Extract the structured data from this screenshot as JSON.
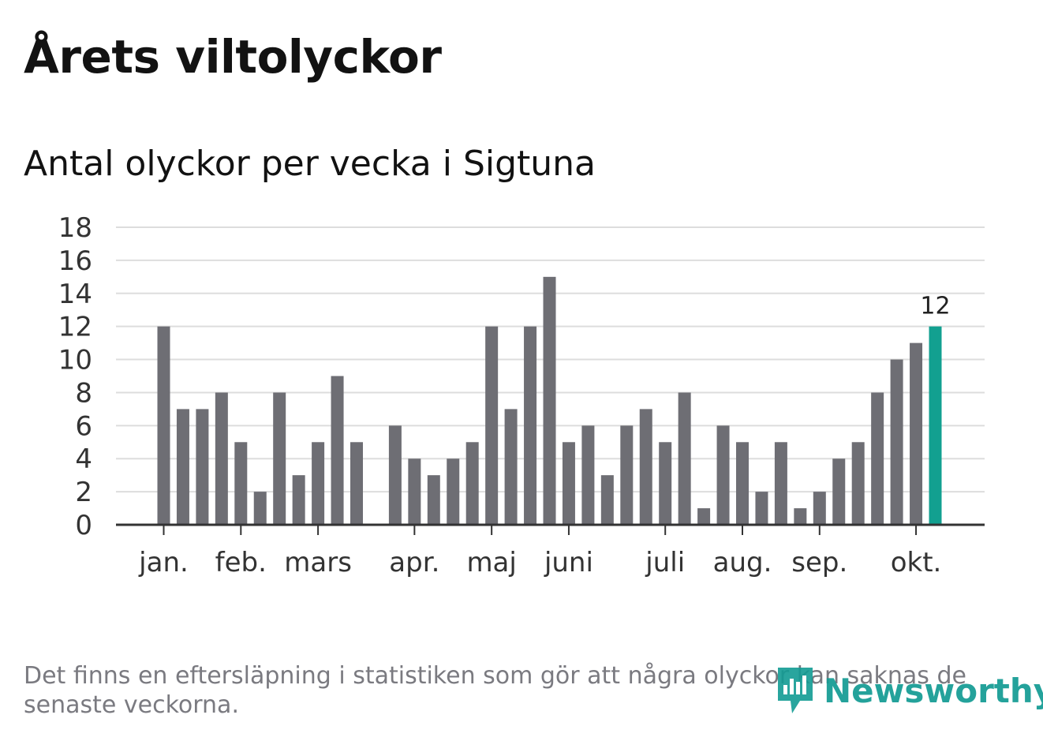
{
  "title": "Årets viltolyckor",
  "subtitle": "Antal olyckor per vecka i Sigtuna",
  "footnote": "Det finns en eftersläpning i statistiken som gör att några olyckor kan saknas de senaste veckorna.",
  "logo": {
    "text": "Newsworthy"
  },
  "colors": {
    "bar": "#6e6e74",
    "highlight": "#12a090",
    "grid": "#dddddd",
    "axis": "#333333",
    "logo": "#129b93"
  },
  "chart_data": {
    "type": "bar",
    "title": "Antal olyckor per vecka i Sigtuna",
    "xlabel": "",
    "ylabel": "",
    "ylim": [
      0,
      18
    ],
    "yticks": [
      "0",
      "2",
      "4",
      "6",
      "8",
      "10",
      "12",
      "14",
      "16",
      "18"
    ],
    "grid": true,
    "weeks": [
      1,
      2,
      3,
      4,
      5,
      6,
      7,
      8,
      9,
      10,
      11,
      12,
      13,
      14,
      15,
      16,
      17,
      18,
      19,
      20,
      21,
      22,
      23,
      24,
      25,
      26,
      27,
      28,
      29,
      30,
      31,
      32,
      33,
      34,
      35,
      36,
      37,
      38,
      39,
      40,
      41
    ],
    "values": [
      12,
      7,
      7,
      8,
      5,
      2,
      8,
      3,
      5,
      9,
      5,
      0,
      6,
      4,
      3,
      4,
      5,
      12,
      7,
      12,
      15,
      5,
      6,
      3,
      6,
      7,
      5,
      8,
      1,
      6,
      5,
      2,
      5,
      1,
      2,
      4,
      5,
      8,
      10,
      11,
      12
    ],
    "month_labels": [
      {
        "label": "jan.",
        "week": 1
      },
      {
        "label": "feb.",
        "week": 5
      },
      {
        "label": "mars",
        "week": 9
      },
      {
        "label": "apr.",
        "week": 14
      },
      {
        "label": "maj",
        "week": 18
      },
      {
        "label": "juni",
        "week": 22
      },
      {
        "label": "juli",
        "week": 27
      },
      {
        "label": "aug.",
        "week": 31
      },
      {
        "label": "sep.",
        "week": 35
      },
      {
        "label": "okt.",
        "week": 40
      }
    ],
    "highlight": {
      "week": 41,
      "value": 12,
      "label": "12"
    }
  }
}
